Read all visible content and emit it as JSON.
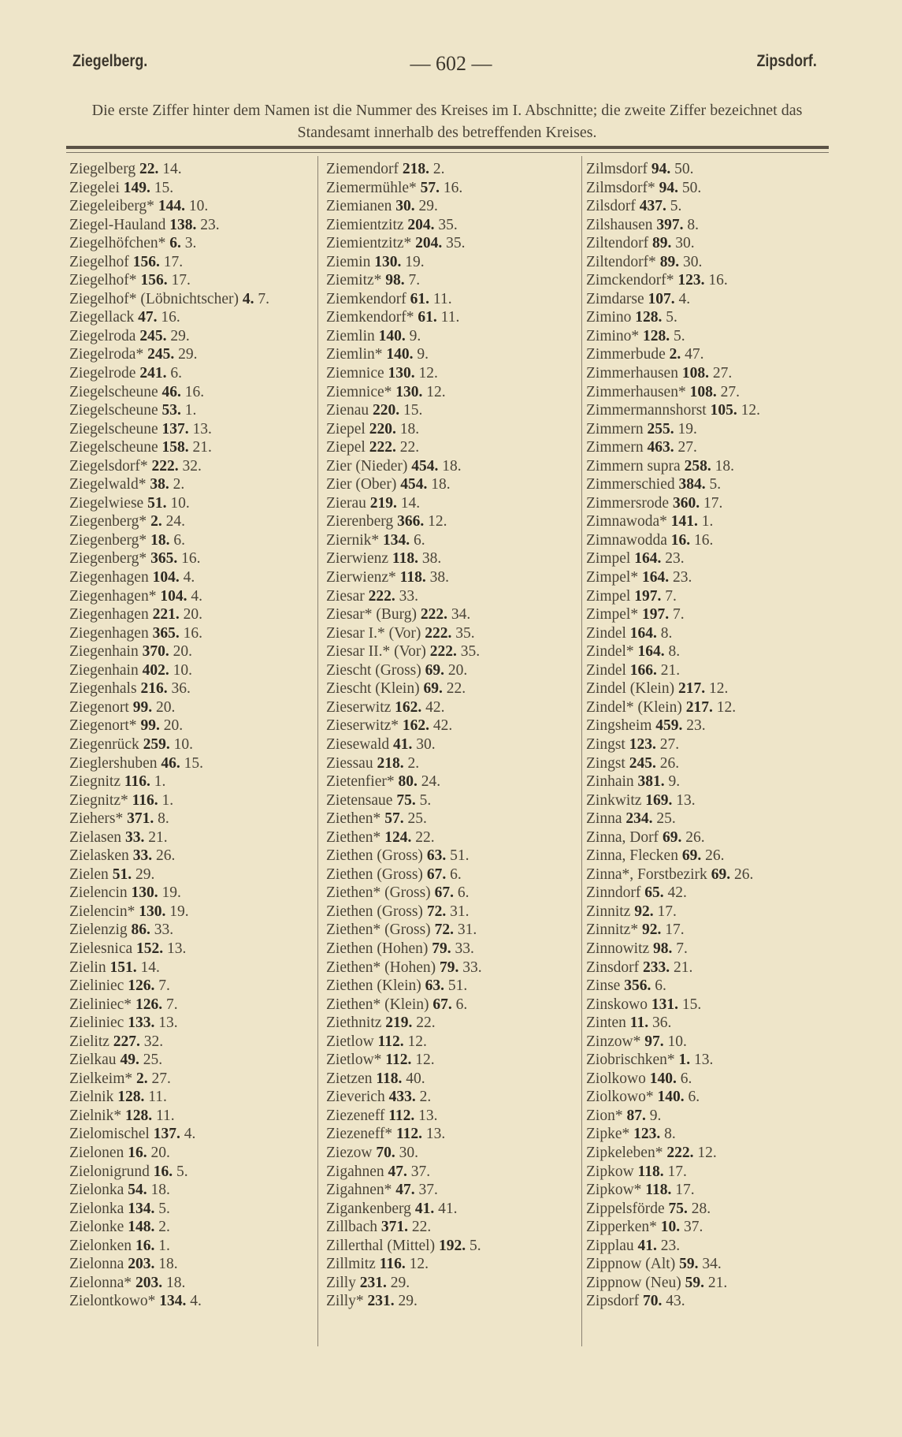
{
  "header": {
    "left": "Ziegelberg.",
    "page": "— 602 —",
    "right": "Zipsdorf."
  },
  "note": "Die erste Ziffer hinter dem Namen ist die Nummer des Kreises im I. Abschnitte; die zweite Ziffer bezeichnet das Standesamt innerhalb des betreffenden Kreises.",
  "columns": [
    [
      [
        "Ziegelberg",
        "22.",
        "14."
      ],
      [
        "Ziegelei",
        "149.",
        "15."
      ],
      [
        "Ziegeleiberg*",
        "144.",
        "10."
      ],
      [
        "Ziegel-Hauland",
        "138.",
        "23."
      ],
      [
        "Ziegelhöfchen*",
        "6.",
        "3."
      ],
      [
        "Ziegelhof",
        "156.",
        "17."
      ],
      [
        "Ziegelhof*",
        "156.",
        "17."
      ],
      [
        "Ziegelhof* (Löbnichtscher)",
        "4.",
        "7."
      ],
      [
        "Ziegellack",
        "47.",
        "16."
      ],
      [
        "Ziegelroda",
        "245.",
        "29."
      ],
      [
        "Ziegelroda*",
        "245.",
        "29."
      ],
      [
        "Ziegelrode",
        "241.",
        "6."
      ],
      [
        "Ziegelscheune",
        "46.",
        "16."
      ],
      [
        "Ziegelscheune",
        "53.",
        "1."
      ],
      [
        "Ziegelscheune",
        "137.",
        "13."
      ],
      [
        "Ziegelscheune",
        "158.",
        "21."
      ],
      [
        "Ziegelsdorf*",
        "222.",
        "32."
      ],
      [
        "Ziegelwald*",
        "38.",
        "2."
      ],
      [
        "Ziegelwiese",
        "51.",
        "10."
      ],
      [
        "Ziegenberg*",
        "2.",
        "24."
      ],
      [
        "Ziegenberg*",
        "18.",
        "6."
      ],
      [
        "Ziegenberg*",
        "365.",
        "16."
      ],
      [
        "Ziegenhagen",
        "104.",
        "4."
      ],
      [
        "Ziegenhagen*",
        "104.",
        "4."
      ],
      [
        "Ziegenhagen",
        "221.",
        "20."
      ],
      [
        "Ziegenhagen",
        "365.",
        "16."
      ],
      [
        "Ziegenhain",
        "370.",
        "20."
      ],
      [
        "Ziegenhain",
        "402.",
        "10."
      ],
      [
        "Ziegenhals",
        "216.",
        "36."
      ],
      [
        "Ziegenort",
        "99.",
        "20."
      ],
      [
        "Ziegenort*",
        "99.",
        "20."
      ],
      [
        "Ziegenrück",
        "259.",
        "10."
      ],
      [
        "Zieglershuben",
        "46.",
        "15."
      ],
      [
        "Ziegnitz",
        "116.",
        "1."
      ],
      [
        "Ziegnitz*",
        "116.",
        "1."
      ],
      [
        "Ziehers*",
        "371.",
        "8."
      ],
      [
        "Zielasen",
        "33.",
        "21."
      ],
      [
        "Zielasken",
        "33.",
        "26."
      ],
      [
        "Zielen",
        "51.",
        "29."
      ],
      [
        "Zielencin",
        "130.",
        "19."
      ],
      [
        "Zielencin*",
        "130.",
        "19."
      ],
      [
        "Zielenzig",
        "86.",
        "33."
      ],
      [
        "Zielesnica",
        "152.",
        "13."
      ],
      [
        "Zielin",
        "151.",
        "14."
      ],
      [
        "Zieliniec",
        "126.",
        "7."
      ],
      [
        "Zieliniec*",
        "126.",
        "7."
      ],
      [
        "Zieliniec",
        "133.",
        "13."
      ],
      [
        "Zielitz",
        "227.",
        "32."
      ],
      [
        "Zielkau",
        "49.",
        "25."
      ],
      [
        "Zielkeim*",
        "2.",
        "27."
      ],
      [
        "Zielnik",
        "128.",
        "11."
      ],
      [
        "Zielnik*",
        "128.",
        "11."
      ],
      [
        "Zielomischel",
        "137.",
        "4."
      ],
      [
        "Zielonen",
        "16.",
        "20."
      ],
      [
        "Zielonigrund",
        "16.",
        "5."
      ],
      [
        "Zielonka",
        "54.",
        "18."
      ],
      [
        "Zielonka",
        "134.",
        "5."
      ],
      [
        "Zielonke",
        "148.",
        "2."
      ],
      [
        "Zielonken",
        "16.",
        "1."
      ],
      [
        "Zielonna",
        "203.",
        "18."
      ],
      [
        "Zielonna*",
        "203.",
        "18."
      ],
      [
        "Zielontkowo*",
        "134.",
        "4."
      ]
    ],
    [
      [
        "Ziemendorf",
        "218.",
        "2."
      ],
      [
        "Ziemermühle*",
        "57.",
        "16."
      ],
      [
        "Ziemianen",
        "30.",
        "29."
      ],
      [
        "Ziemientzitz",
        "204.",
        "35."
      ],
      [
        "Ziemientzitz*",
        "204.",
        "35."
      ],
      [
        "Ziemin",
        "130.",
        "19."
      ],
      [
        "Ziemitz*",
        "98.",
        "7."
      ],
      [
        "Ziemkendorf",
        "61.",
        "11."
      ],
      [
        "Ziemkendorf*",
        "61.",
        "11."
      ],
      [
        "Ziemlin",
        "140.",
        "9."
      ],
      [
        "Ziemlin*",
        "140.",
        "9."
      ],
      [
        "Ziemnice",
        "130.",
        "12."
      ],
      [
        "Ziemnice*",
        "130.",
        "12."
      ],
      [
        "Zienau",
        "220.",
        "15."
      ],
      [
        "Ziepel",
        "220.",
        "18."
      ],
      [
        "Ziepel",
        "222.",
        "22."
      ],
      [
        "Zier (Nieder)",
        "454.",
        "18."
      ],
      [
        "Zier (Ober)",
        "454.",
        "18."
      ],
      [
        "Zierau",
        "219.",
        "14."
      ],
      [
        "Zierenberg",
        "366.",
        "12."
      ],
      [
        "Ziernik*",
        "134.",
        "6."
      ],
      [
        "Zierwienz",
        "118.",
        "38."
      ],
      [
        "Zierwienz*",
        "118.",
        "38."
      ],
      [
        "Ziesar",
        "222.",
        "33."
      ],
      [
        "Ziesar* (Burg)",
        "222.",
        "34."
      ],
      [
        "Ziesar I.* (Vor)",
        "222.",
        "35."
      ],
      [
        "Ziesar II.* (Vor)",
        "222.",
        "35."
      ],
      [
        "Ziescht (Gross)",
        "69.",
        "20."
      ],
      [
        "Ziescht (Klein)",
        "69.",
        "22."
      ],
      [
        "Zieserwitz",
        "162.",
        "42."
      ],
      [
        "Zieserwitz*",
        "162.",
        "42."
      ],
      [
        "Ziesewald",
        "41.",
        "30."
      ],
      [
        "Ziessau",
        "218.",
        "2."
      ],
      [
        "Zietenfier*",
        "80.",
        "24."
      ],
      [
        "Zietensaue",
        "75.",
        "5."
      ],
      [
        "Ziethen*",
        "57.",
        "25."
      ],
      [
        "Ziethen*",
        "124.",
        "22."
      ],
      [
        "Ziethen (Gross)",
        "63.",
        "51."
      ],
      [
        "Ziethen (Gross)",
        "67.",
        "6."
      ],
      [
        "Ziethen* (Gross)",
        "67.",
        "6."
      ],
      [
        "Ziethen (Gross)",
        "72.",
        "31."
      ],
      [
        "Ziethen* (Gross)",
        "72.",
        "31."
      ],
      [
        "Ziethen (Hohen)",
        "79.",
        "33."
      ],
      [
        "Ziethen* (Hohen)",
        "79.",
        "33."
      ],
      [
        "Ziethen (Klein)",
        "63.",
        "51."
      ],
      [
        "Ziethen* (Klein)",
        "67.",
        "6."
      ],
      [
        "Ziethnitz",
        "219.",
        "22."
      ],
      [
        "Zietlow",
        "112.",
        "12."
      ],
      [
        "Zietlow*",
        "112.",
        "12."
      ],
      [
        "Zietzen",
        "118.",
        "40."
      ],
      [
        "Zieverich",
        "433.",
        "2."
      ],
      [
        "Ziezeneff",
        "112.",
        "13."
      ],
      [
        "Ziezeneff*",
        "112.",
        "13."
      ],
      [
        "Ziezow",
        "70.",
        "30."
      ],
      [
        "Zigahnen",
        "47.",
        "37."
      ],
      [
        "Zigahnen*",
        "47.",
        "37."
      ],
      [
        "Zigankenberg",
        "41.",
        "41."
      ],
      [
        "Zillbach",
        "371.",
        "22."
      ],
      [
        "Zillerthal (Mittel)",
        "192.",
        "5."
      ],
      [
        "Zillmitz",
        "116.",
        "12."
      ],
      [
        "Zilly",
        "231.",
        "29."
      ],
      [
        "Zilly*",
        "231.",
        "29."
      ]
    ],
    [
      [
        "Zilmsdorf",
        "94.",
        "50."
      ],
      [
        "Zilmsdorf*",
        "94.",
        "50."
      ],
      [
        "Zilsdorf",
        "437.",
        "5."
      ],
      [
        "Zilshausen",
        "397.",
        "8."
      ],
      [
        "Ziltendorf",
        "89.",
        "30."
      ],
      [
        "Ziltendorf*",
        "89.",
        "30."
      ],
      [
        "Zimckendorf*",
        "123.",
        "16."
      ],
      [
        "Zimdarse",
        "107.",
        "4."
      ],
      [
        "Zimino",
        "128.",
        "5."
      ],
      [
        "Zimino*",
        "128.",
        "5."
      ],
      [
        "Zimmerbude",
        "2.",
        "47."
      ],
      [
        "Zimmerhausen",
        "108.",
        "27."
      ],
      [
        "Zimmerhausen*",
        "108.",
        "27."
      ],
      [
        "Zimmermannshorst",
        "105.",
        "12."
      ],
      [
        "Zimmern",
        "255.",
        "19."
      ],
      [
        "Zimmern",
        "463.",
        "27."
      ],
      [
        "Zimmern supra",
        "258.",
        "18."
      ],
      [
        "Zimmerschied",
        "384.",
        "5."
      ],
      [
        "Zimmersrode",
        "360.",
        "17."
      ],
      [
        "Zimnawoda*",
        "141.",
        "1."
      ],
      [
        "Zimnawodda",
        "16.",
        "16."
      ],
      [
        "Zimpel",
        "164.",
        "23."
      ],
      [
        "Zimpel*",
        "164.",
        "23."
      ],
      [
        "Zimpel",
        "197.",
        "7."
      ],
      [
        "Zimpel*",
        "197.",
        "7."
      ],
      [
        "Zindel",
        "164.",
        "8."
      ],
      [
        "Zindel*",
        "164.",
        "8."
      ],
      [
        "Zindel",
        "166.",
        "21."
      ],
      [
        "Zindel (Klein)",
        "217.",
        "12."
      ],
      [
        "Zindel* (Klein)",
        "217.",
        "12."
      ],
      [
        "Zingsheim",
        "459.",
        "23."
      ],
      [
        "Zingst",
        "123.",
        "27."
      ],
      [
        "Zingst",
        "245.",
        "26."
      ],
      [
        "Zinhain",
        "381.",
        "9."
      ],
      [
        "Zinkwitz",
        "169.",
        "13."
      ],
      [
        "Zinna",
        "234.",
        "25."
      ],
      [
        "Zinna, Dorf",
        "69.",
        "26."
      ],
      [
        "Zinna, Flecken",
        "69.",
        "26."
      ],
      [
        "Zinna*, Forstbezirk",
        "69.",
        "26."
      ],
      [
        "Zinndorf",
        "65.",
        "42."
      ],
      [
        "Zinnitz",
        "92.",
        "17."
      ],
      [
        "Zinnitz*",
        "92.",
        "17."
      ],
      [
        "Zinnowitz",
        "98.",
        "7."
      ],
      [
        "Zinsdorf",
        "233.",
        "21."
      ],
      [
        "Zinse",
        "356.",
        "6."
      ],
      [
        "Zinskowo",
        "131.",
        "15."
      ],
      [
        "Zinten",
        "11.",
        "36."
      ],
      [
        "Zinzow*",
        "97.",
        "10."
      ],
      [
        "Ziobrischken*",
        "1.",
        "13."
      ],
      [
        "Ziolkowo",
        "140.",
        "6."
      ],
      [
        "Ziolkowo*",
        "140.",
        "6."
      ],
      [
        "Zion*",
        "87.",
        "9."
      ],
      [
        "Zipke*",
        "123.",
        "8."
      ],
      [
        "Zipkeleben*",
        "222.",
        "12."
      ],
      [
        "Zipkow",
        "118.",
        "17."
      ],
      [
        "Zipkow*",
        "118.",
        "17."
      ],
      [
        "Zippelsförde",
        "75.",
        "28."
      ],
      [
        "Zipperken*",
        "10.",
        "37."
      ],
      [
        "Zipplau",
        "41.",
        "23."
      ],
      [
        "Zippnow (Alt)",
        "59.",
        "34."
      ],
      [
        "Zippnow (Neu)",
        "59.",
        "21."
      ],
      [
        "Zipsdorf",
        "70.",
        "43."
      ]
    ]
  ]
}
